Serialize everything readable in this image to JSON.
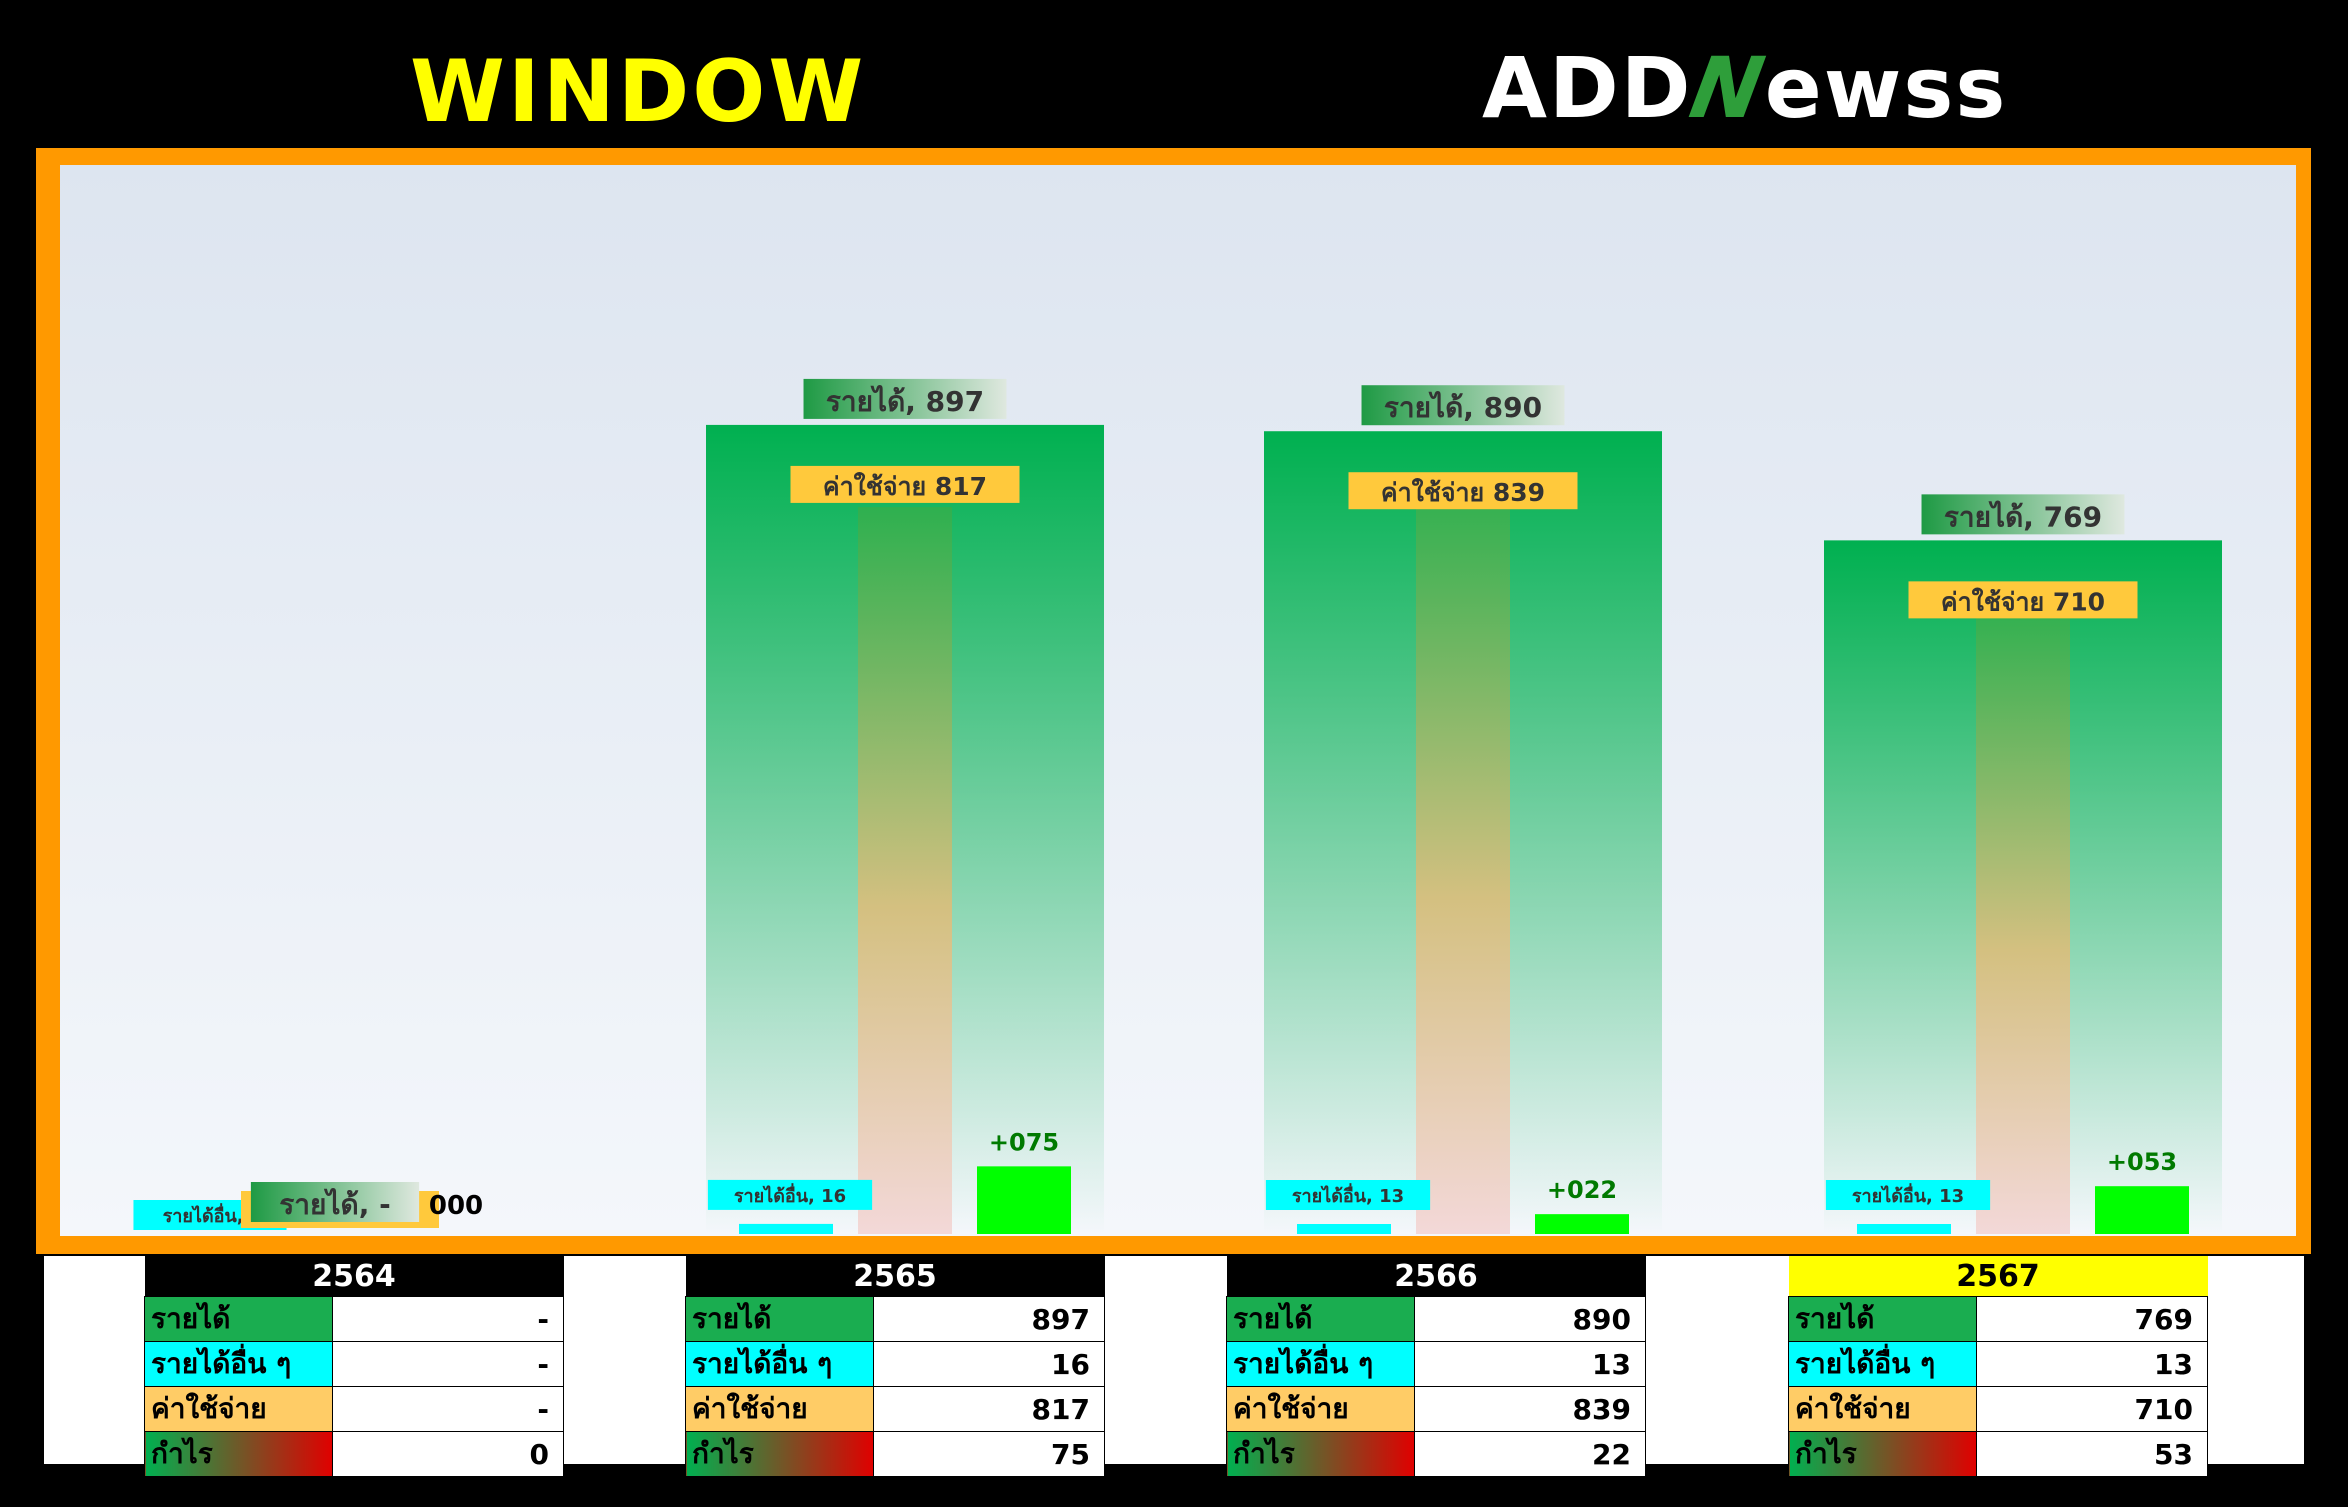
{
  "header": {
    "title": "WINDOW",
    "brand_prefix": "ADD",
    "brand_n": "N",
    "brand_suffix": "ewss"
  },
  "chart_data": {
    "type": "bar",
    "categories": [
      "2564",
      "2565",
      "2566",
      "2567"
    ],
    "series": [
      {
        "name": "รายได้",
        "values": [
          0,
          897,
          890,
          769
        ],
        "labels": [
          "รายได้, -",
          "รายได้, 897",
          "รายได้, 890",
          "รายได้, 769"
        ]
      },
      {
        "name": "รายได้อื่น",
        "values": [
          0,
          16,
          13,
          13
        ],
        "labels": [
          "รายได้อื่น, -",
          "รายได้อื่น, 16",
          "รายได้อื่น, 13",
          "รายได้อื่น, 13"
        ]
      },
      {
        "name": "ค่าใช้จ่าย",
        "values": [
          0,
          817,
          839,
          710
        ],
        "labels": [
          "ค่าใช้จ่าย -",
          "ค่าใช้จ่าย 817",
          "ค่าใช้จ่าย 839",
          "ค่าใช้จ่าย 710"
        ]
      },
      {
        "name": "กำไร",
        "values": [
          0,
          75,
          22,
          53
        ],
        "labels": [
          "000",
          "+075",
          "+022",
          "+053"
        ]
      }
    ],
    "ylim": [
      0,
      1000
    ],
    "colors": {
      "revenue_top": "#00b050",
      "other": "#00ffff",
      "expense_top": "#2eb04f",
      "expense_mid": "#d4c080",
      "expense_bottom": "#f3d8d8",
      "profit": "#00ff00",
      "profit_label": "#007a00"
    }
  },
  "tables": [
    {
      "year": "2564",
      "highlight": false,
      "rows": [
        {
          "label": "รายได้",
          "value": "-"
        },
        {
          "label": "รายได้อื่น ๆ",
          "value": "-"
        },
        {
          "label": "ค่าใช้จ่าย",
          "value": "-"
        },
        {
          "label": "กำไร",
          "value": "0"
        }
      ]
    },
    {
      "year": "2565",
      "highlight": false,
      "rows": [
        {
          "label": "รายได้",
          "value": "897"
        },
        {
          "label": "รายได้อื่น ๆ",
          "value": "16"
        },
        {
          "label": "ค่าใช้จ่าย",
          "value": "817"
        },
        {
          "label": "กำไร",
          "value": "75"
        }
      ]
    },
    {
      "year": "2566",
      "highlight": false,
      "rows": [
        {
          "label": "รายได้",
          "value": "890"
        },
        {
          "label": "รายได้อื่น ๆ",
          "value": "13"
        },
        {
          "label": "ค่าใช้จ่าย",
          "value": "839"
        },
        {
          "label": "กำไร",
          "value": "22"
        }
      ]
    },
    {
      "year": "2567",
      "highlight": true,
      "rows": [
        {
          "label": "รายได้",
          "value": "769"
        },
        {
          "label": "รายได้อื่น ๆ",
          "value": "13"
        },
        {
          "label": "ค่าใช้จ่าย",
          "value": "710"
        },
        {
          "label": "กำไร",
          "value": "53"
        }
      ]
    }
  ]
}
